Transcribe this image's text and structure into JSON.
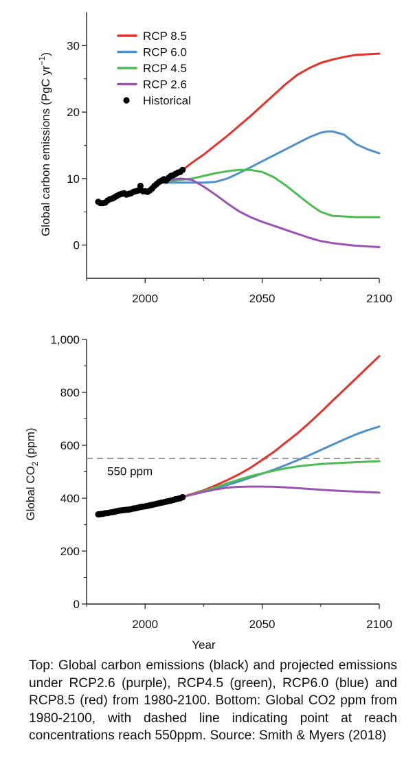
{
  "chart_data": [
    {
      "type": "line",
      "ylabel": "Global carbon emissions (PgC yr",
      "ylabel_sup": "−1",
      "ylabel_end": ")",
      "xlabel": "",
      "xlim": [
        1975,
        2100
      ],
      "ylim": [
        -5,
        35
      ],
      "x_ticks": [
        2000,
        2050,
        2100
      ],
      "y_ticks": [
        0,
        10,
        20,
        30
      ],
      "grid": false,
      "legend_position": "top-left",
      "series": [
        {
          "name": "RCP 8.5",
          "color": "#e8302a",
          "x": [
            2005,
            2010,
            2015,
            2020,
            2025,
            2030,
            2035,
            2040,
            2045,
            2050,
            2055,
            2060,
            2065,
            2070,
            2075,
            2080,
            2085,
            2090,
            2095,
            2100
          ],
          "y": [
            9.4,
            10.2,
            11.0,
            12.4,
            13.6,
            15.0,
            16.4,
            17.9,
            19.4,
            21.0,
            22.6,
            24.2,
            25.6,
            26.6,
            27.4,
            27.9,
            28.3,
            28.6,
            28.7,
            28.8
          ]
        },
        {
          "name": "RCP 6.0",
          "color": "#4e8fcc",
          "x": [
            2005,
            2010,
            2015,
            2020,
            2025,
            2030,
            2035,
            2040,
            2045,
            2050,
            2055,
            2060,
            2065,
            2070,
            2075,
            2078,
            2080,
            2085,
            2090,
            2095,
            2100
          ],
          "y": [
            9.3,
            9.4,
            9.4,
            9.4,
            9.4,
            9.5,
            10.0,
            10.8,
            11.7,
            12.6,
            13.5,
            14.4,
            15.3,
            16.2,
            16.9,
            17.1,
            17.1,
            16.6,
            15.2,
            14.4,
            13.8
          ]
        },
        {
          "name": "RCP 4.5",
          "color": "#4dbb52",
          "x": [
            2005,
            2010,
            2015,
            2020,
            2025,
            2030,
            2035,
            2040,
            2045,
            2050,
            2055,
            2060,
            2065,
            2070,
            2075,
            2080,
            2085,
            2090,
            2095,
            2100
          ],
          "y": [
            9.4,
            9.6,
            9.8,
            10.0,
            10.4,
            10.8,
            11.1,
            11.3,
            11.3,
            11.0,
            10.2,
            9.0,
            7.6,
            6.2,
            5.0,
            4.4,
            4.3,
            4.2,
            4.2,
            4.2
          ]
        },
        {
          "name": "RCP 2.6",
          "color": "#9b52b4",
          "x": [
            2005,
            2010,
            2015,
            2020,
            2025,
            2030,
            2035,
            2040,
            2045,
            2050,
            2055,
            2060,
            2065,
            2070,
            2075,
            2080,
            2085,
            2090,
            2095,
            2100
          ],
          "y": [
            9.5,
            9.8,
            10.0,
            9.8,
            8.8,
            7.6,
            6.3,
            5.1,
            4.2,
            3.5,
            2.9,
            2.3,
            1.7,
            1.1,
            0.6,
            0.3,
            0.1,
            -0.1,
            -0.2,
            -0.3
          ]
        },
        {
          "name": "Historical",
          "color": "#000000",
          "marker": "dot",
          "x": [
            1980,
            1981,
            1982,
            1983,
            1984,
            1985,
            1986,
            1987,
            1988,
            1989,
            1990,
            1991,
            1992,
            1993,
            1994,
            1995,
            1996,
            1997,
            1998,
            1999,
            2000,
            2001,
            2002,
            2003,
            2004,
            2005,
            2006,
            2007,
            2008,
            2009,
            2010,
            2011,
            2012,
            2013,
            2014,
            2015,
            2016
          ],
          "y": [
            6.5,
            6.3,
            6.3,
            6.4,
            6.7,
            6.9,
            7.0,
            7.2,
            7.4,
            7.6,
            7.7,
            7.8,
            7.6,
            7.7,
            7.8,
            8.0,
            8.1,
            8.2,
            8.9,
            8.1,
            8.1,
            8.0,
            8.2,
            8.5,
            8.9,
            9.2,
            9.5,
            9.7,
            9.9,
            9.7,
            10.1,
            10.4,
            10.5,
            10.7,
            10.9,
            11.0,
            11.3
          ]
        }
      ]
    },
    {
      "type": "line",
      "ylabel": "Global CO",
      "ylabel_sub": "2",
      "ylabel_end": " (ppm)",
      "xlabel": "Year",
      "xlim": [
        1975,
        2100
      ],
      "ylim": [
        0,
        1000
      ],
      "x_ticks": [
        2000,
        2050,
        2100
      ],
      "y_ticks": [
        0,
        200,
        400,
        600,
        800,
        1000
      ],
      "y_tick_labels": [
        "0",
        "200",
        "400",
        "600",
        "800",
        "1,000"
      ],
      "grid": false,
      "reference_line": {
        "y": 550,
        "label": "550 ppm",
        "style": "dashed",
        "color": "#888888"
      },
      "series": [
        {
          "name": "RCP 8.5",
          "color": "#e8302a",
          "x": [
            2017,
            2025,
            2030,
            2035,
            2040,
            2045,
            2050,
            2055,
            2060,
            2065,
            2070,
            2075,
            2080,
            2085,
            2090,
            2095,
            2100
          ],
          "y": [
            408,
            430,
            448,
            468,
            490,
            515,
            545,
            575,
            610,
            645,
            684,
            725,
            768,
            810,
            852,
            895,
            937
          ]
        },
        {
          "name": "RCP 6.0",
          "color": "#4e8fcc",
          "x": [
            2017,
            2025,
            2030,
            2035,
            2040,
            2045,
            2050,
            2055,
            2060,
            2065,
            2070,
            2075,
            2080,
            2085,
            2090,
            2095,
            2100
          ],
          "y": [
            407,
            425,
            437,
            450,
            463,
            478,
            493,
            508,
            525,
            543,
            562,
            582,
            602,
            622,
            641,
            657,
            671
          ]
        },
        {
          "name": "RCP 4.5",
          "color": "#4dbb52",
          "x": [
            2017,
            2025,
            2030,
            2035,
            2040,
            2045,
            2050,
            2055,
            2060,
            2065,
            2070,
            2075,
            2080,
            2085,
            2090,
            2095,
            2100
          ],
          "y": [
            407,
            427,
            441,
            456,
            470,
            483,
            494,
            504,
            513,
            520,
            525,
            529,
            532,
            534,
            536,
            538,
            540
          ]
        },
        {
          "name": "RCP 2.6",
          "color": "#9b52b4",
          "x": [
            2017,
            2025,
            2030,
            2035,
            2040,
            2045,
            2050,
            2055,
            2060,
            2065,
            2070,
            2075,
            2080,
            2085,
            2090,
            2095,
            2100
          ],
          "y": [
            407,
            424,
            433,
            440,
            443,
            444,
            444,
            443,
            441,
            438,
            435,
            432,
            429,
            427,
            425,
            423,
            421
          ]
        },
        {
          "name": "Historical",
          "color": "#000000",
          "marker": "dot",
          "x": [
            1980,
            1981,
            1982,
            1983,
            1984,
            1985,
            1986,
            1987,
            1988,
            1989,
            1990,
            1991,
            1992,
            1993,
            1994,
            1995,
            1996,
            1997,
            1998,
            1999,
            2000,
            2001,
            2002,
            2003,
            2004,
            2005,
            2006,
            2007,
            2008,
            2009,
            2010,
            2011,
            2012,
            2013,
            2014,
            2015,
            2016
          ],
          "y": [
            339,
            340,
            341,
            343,
            344,
            346,
            347,
            349,
            351,
            353,
            354,
            355,
            356,
            357,
            359,
            361,
            362,
            364,
            367,
            368,
            369,
            371,
            373,
            375,
            377,
            379,
            381,
            383,
            385,
            387,
            389,
            391,
            393,
            396,
            398,
            400,
            404
          ]
        }
      ]
    }
  ],
  "caption": "Top: Global carbon emissions (black) and projected emissions under RCP2.6 (purple), RCP4.5 (green), RCP6.0 (blue) and RCP8.5 (red) from 1980-2100. Bottom: Global CO2 ppm from 1980-2100, with dashed line indicating point at reach concentrations reach 550ppm. Source: Smith & Myers (2018)"
}
